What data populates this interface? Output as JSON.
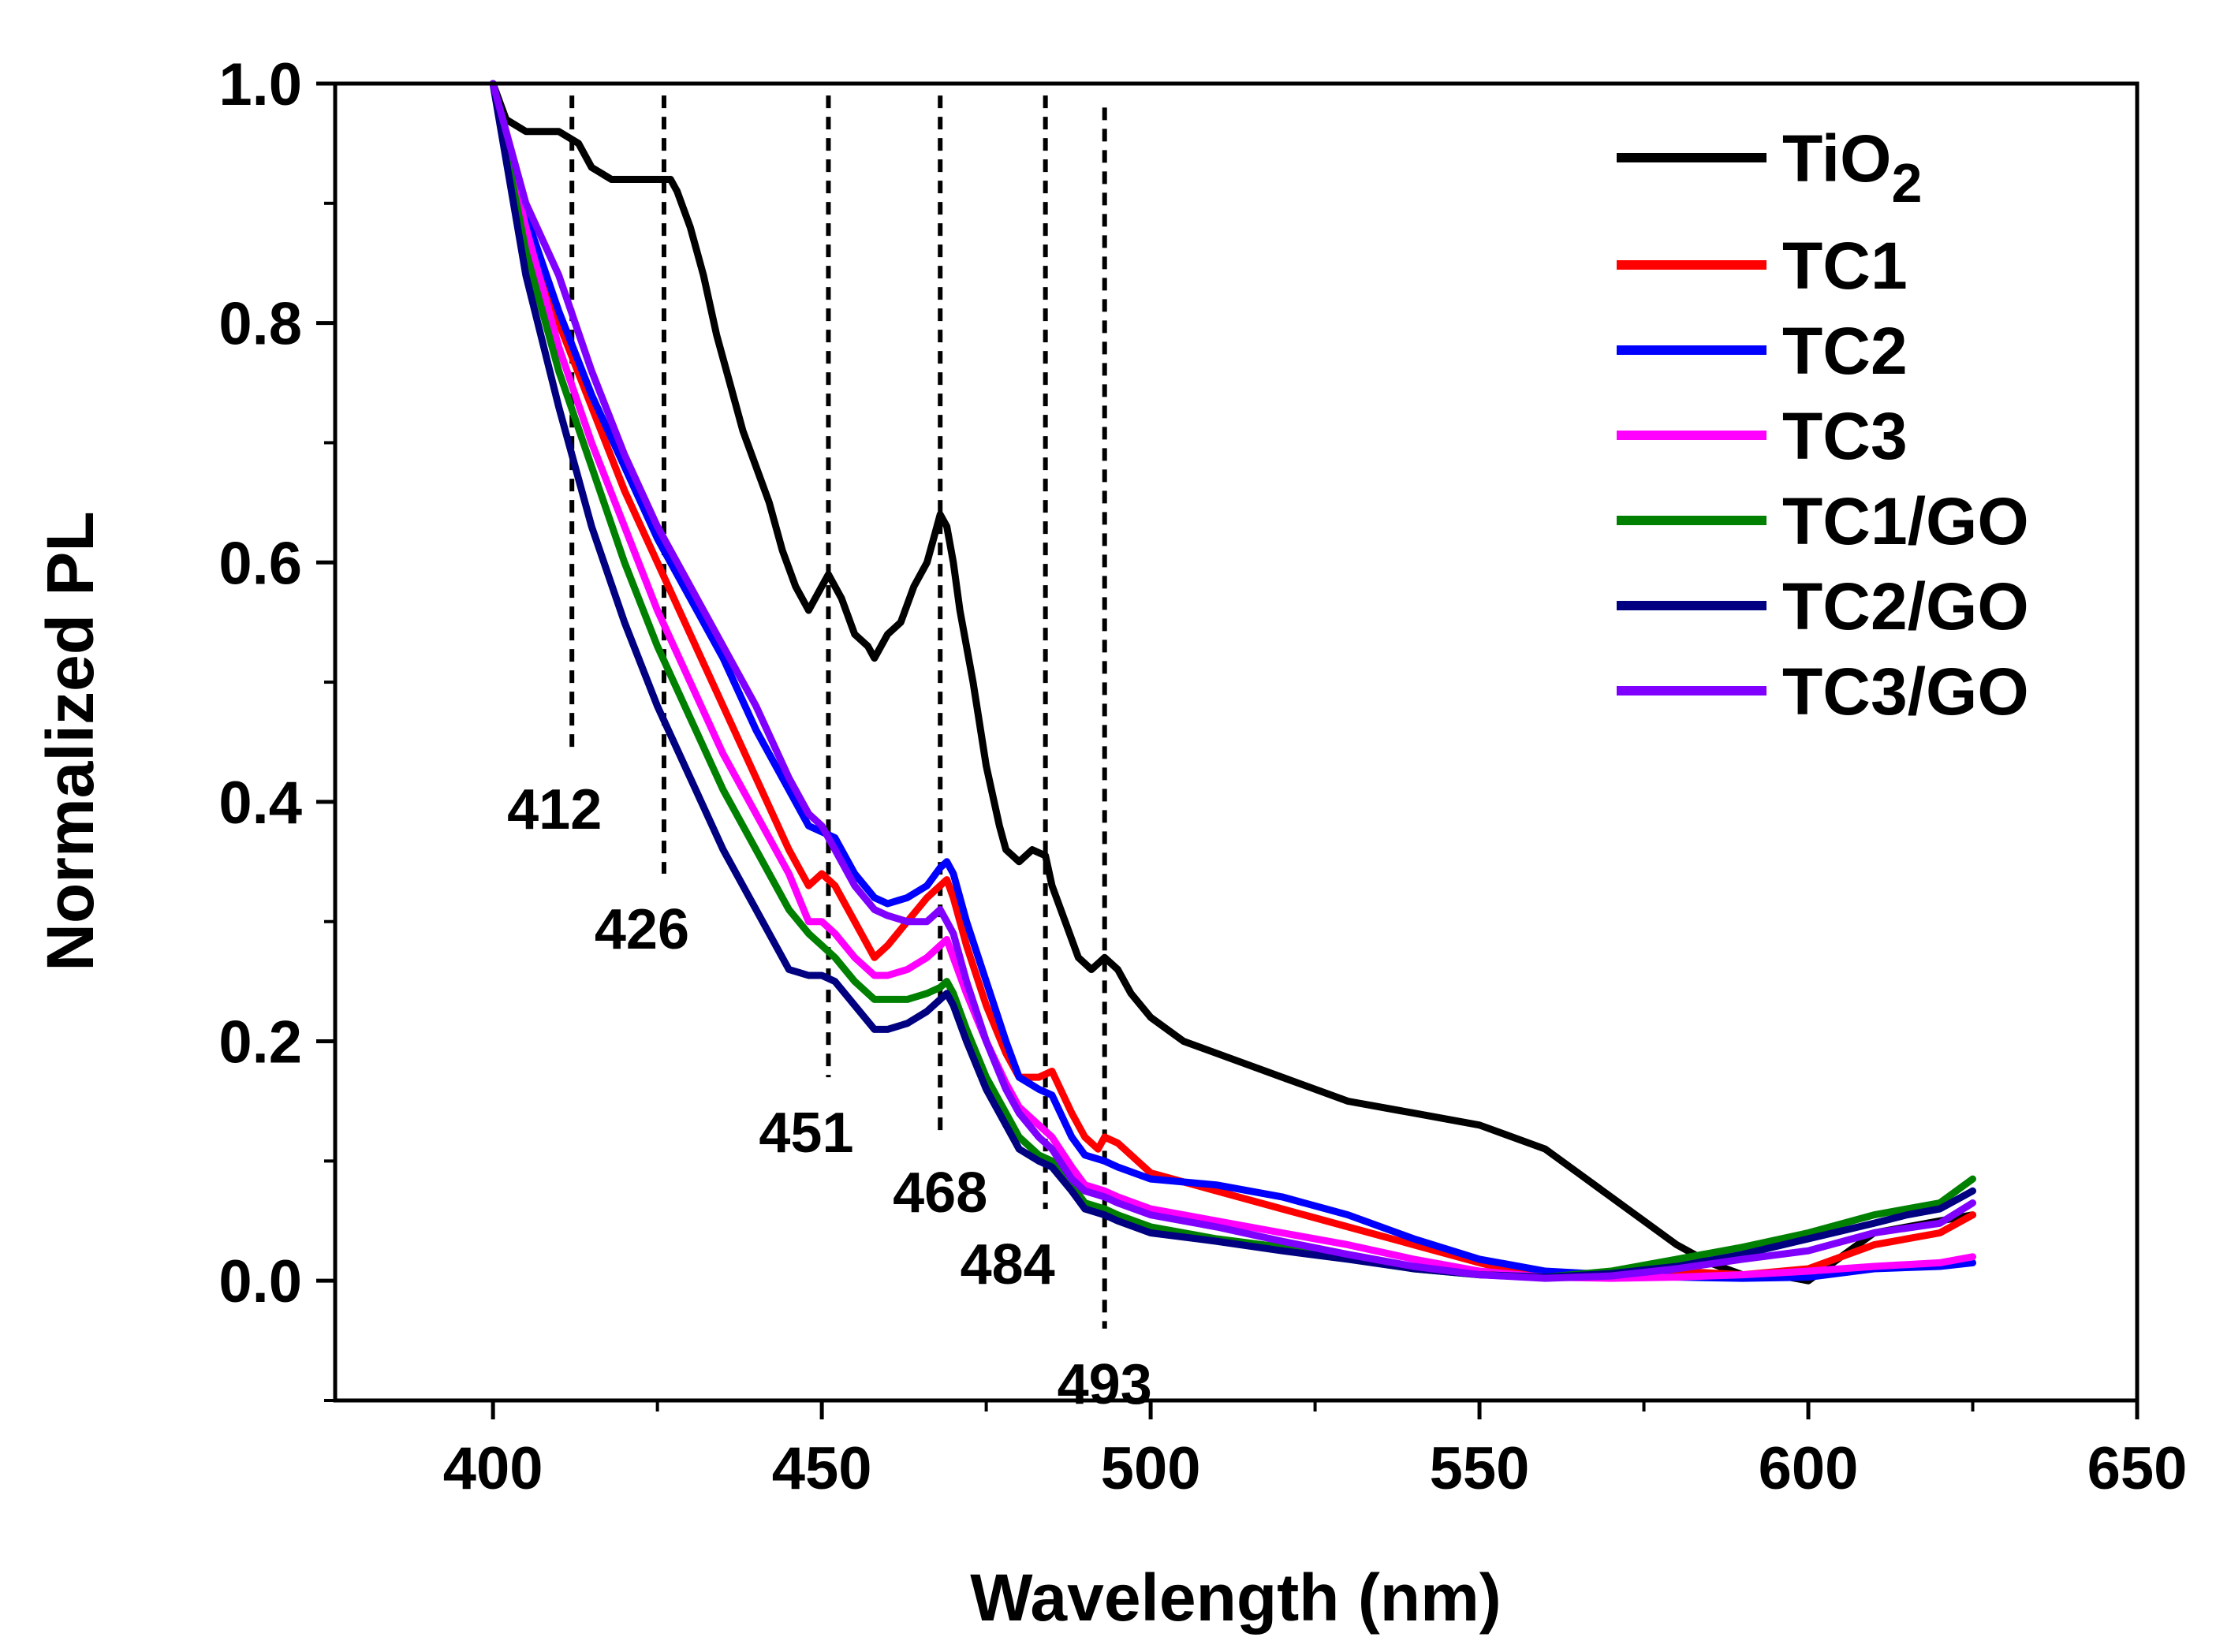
{
  "chart_data": {
    "type": "line",
    "xlabel": "Wavelength (nm)",
    "ylabel": "Normalized PL",
    "xlim": [
      376,
      650
    ],
    "ylim": [
      -0.1,
      1.0
    ],
    "xticks": [
      "400",
      "450",
      "500",
      "550",
      "600",
      "650"
    ],
    "xtick_values": [
      400,
      450,
      500,
      550,
      600,
      650
    ],
    "yticks": [
      "0.0",
      "0.2",
      "0.4",
      "0.6",
      "0.8",
      "1.0"
    ],
    "ytick_values": [
      0.0,
      0.2,
      0.4,
      0.6,
      0.8,
      1.0
    ],
    "peak_markers": [
      {
        "wavelength": 412,
        "label": "412",
        "ymin": 0.44,
        "ymax": 0.99
      },
      {
        "wavelength": 426,
        "label": "426",
        "ymin": 0.34,
        "ymax": 0.99
      },
      {
        "wavelength": 451,
        "label": "451",
        "ymin": 0.17,
        "ymax": 0.99
      },
      {
        "wavelength": 468,
        "label": "468",
        "ymin": 0.12,
        "ymax": 0.99
      },
      {
        "wavelength": 484,
        "label": "484",
        "ymin": 0.06,
        "ymax": 0.99
      },
      {
        "wavelength": 493,
        "label": "493",
        "ymin": -0.04,
        "ymax": 0.98
      }
    ],
    "series": [
      {
        "name": "TiO",
        "subscript": "2",
        "color": "#000000",
        "x": [
          400,
          402,
          405,
          410,
          413,
          415,
          418,
          420,
          422,
          425,
          427,
          428,
          430,
          432,
          434,
          436,
          438,
          440,
          442,
          444,
          446,
          448,
          450,
          451,
          453,
          455,
          457,
          458,
          460,
          462,
          464,
          466,
          467,
          468,
          469,
          470,
          471,
          473,
          475,
          477,
          478,
          479,
          480,
          482,
          484,
          485,
          487,
          489,
          491,
          492,
          493,
          495,
          497,
          500,
          505,
          510,
          520,
          530,
          540,
          550,
          560,
          565,
          570,
          575,
          580,
          585,
          590,
          595,
          600,
          605,
          610,
          615,
          620,
          625
        ],
        "y": [
          1.0,
          0.97,
          0.96,
          0.96,
          0.95,
          0.93,
          0.92,
          0.92,
          0.92,
          0.92,
          0.92,
          0.91,
          0.88,
          0.84,
          0.79,
          0.75,
          0.71,
          0.68,
          0.65,
          0.61,
          0.58,
          0.56,
          0.58,
          0.59,
          0.57,
          0.54,
          0.53,
          0.52,
          0.54,
          0.55,
          0.58,
          0.6,
          0.62,
          0.64,
          0.63,
          0.6,
          0.56,
          0.5,
          0.43,
          0.38,
          0.36,
          0.355,
          0.35,
          0.36,
          0.355,
          0.33,
          0.3,
          0.27,
          0.26,
          0.265,
          0.27,
          0.26,
          0.24,
          0.22,
          0.2,
          0.19,
          0.17,
          0.15,
          0.14,
          0.13,
          0.11,
          0.09,
          0.07,
          0.05,
          0.03,
          0.015,
          0.005,
          0.005,
          0.0,
          0.02,
          0.04,
          0.045,
          0.05,
          0.055
        ]
      },
      {
        "name": "TC1",
        "color": "#ff0000",
        "x": [
          400,
          405,
          410,
          415,
          420,
          425,
          430,
          435,
          440,
          445,
          448,
          450,
          452,
          455,
          458,
          460,
          463,
          466,
          468,
          469,
          470,
          472,
          475,
          478,
          480,
          483,
          485,
          488,
          490,
          492,
          493,
          495,
          500,
          510,
          520,
          530,
          540,
          550,
          555,
          560,
          570,
          580,
          590,
          600,
          610,
          620,
          625
        ],
        "y": [
          1.0,
          0.88,
          0.8,
          0.73,
          0.66,
          0.6,
          0.54,
          0.48,
          0.42,
          0.36,
          0.33,
          0.34,
          0.33,
          0.3,
          0.27,
          0.28,
          0.3,
          0.32,
          0.33,
          0.335,
          0.32,
          0.28,
          0.23,
          0.19,
          0.17,
          0.17,
          0.175,
          0.14,
          0.12,
          0.11,
          0.12,
          0.115,
          0.09,
          0.075,
          0.06,
          0.045,
          0.03,
          0.015,
          0.008,
          0.005,
          0.005,
          0.008,
          0.005,
          0.01,
          0.03,
          0.04,
          0.055
        ]
      },
      {
        "name": "TC2",
        "color": "#0000ff",
        "x": [
          400,
          405,
          410,
          415,
          420,
          425,
          430,
          435,
          440,
          445,
          448,
          450,
          452,
          455,
          458,
          460,
          463,
          466,
          468,
          469,
          470,
          472,
          475,
          478,
          480,
          483,
          485,
          488,
          490,
          493,
          495,
          500,
          510,
          520,
          530,
          540,
          550,
          560,
          570,
          580,
          590,
          600,
          610,
          620,
          625
        ],
        "y": [
          1.0,
          0.89,
          0.81,
          0.74,
          0.68,
          0.62,
          0.57,
          0.52,
          0.46,
          0.41,
          0.38,
          0.375,
          0.37,
          0.34,
          0.32,
          0.315,
          0.32,
          0.33,
          0.345,
          0.35,
          0.34,
          0.3,
          0.25,
          0.2,
          0.17,
          0.16,
          0.155,
          0.12,
          0.105,
          0.1,
          0.095,
          0.085,
          0.08,
          0.07,
          0.055,
          0.035,
          0.018,
          0.008,
          0.005,
          0.003,
          0.002,
          0.003,
          0.01,
          0.012,
          0.015
        ]
      },
      {
        "name": "TC3",
        "color": "#ff00ff",
        "x": [
          400,
          405,
          410,
          415,
          420,
          425,
          430,
          435,
          440,
          445,
          448,
          450,
          452,
          455,
          458,
          460,
          463,
          466,
          468,
          469,
          470,
          472,
          475,
          478,
          480,
          483,
          485,
          488,
          490,
          493,
          495,
          500,
          510,
          520,
          530,
          540,
          550,
          560,
          570,
          580,
          590,
          600,
          610,
          620,
          625
        ],
        "y": [
          1.0,
          0.88,
          0.78,
          0.7,
          0.63,
          0.56,
          0.5,
          0.44,
          0.39,
          0.34,
          0.3,
          0.3,
          0.29,
          0.27,
          0.255,
          0.255,
          0.26,
          0.27,
          0.28,
          0.285,
          0.27,
          0.24,
          0.2,
          0.165,
          0.145,
          0.13,
          0.12,
          0.095,
          0.08,
          0.075,
          0.07,
          0.06,
          0.05,
          0.04,
          0.03,
          0.018,
          0.008,
          0.003,
          0.002,
          0.003,
          0.005,
          0.008,
          0.012,
          0.015,
          0.02
        ]
      },
      {
        "name": "TC1/GO",
        "color": "#008000",
        "x": [
          400,
          405,
          410,
          415,
          420,
          425,
          430,
          435,
          440,
          445,
          448,
          450,
          452,
          455,
          458,
          460,
          463,
          466,
          468,
          469,
          470,
          472,
          475,
          478,
          480,
          483,
          485,
          488,
          490,
          493,
          495,
          500,
          510,
          520,
          530,
          540,
          550,
          560,
          570,
          580,
          590,
          600,
          610,
          615,
          620,
          625
        ],
        "y": [
          1.0,
          0.86,
          0.76,
          0.68,
          0.6,
          0.53,
          0.47,
          0.41,
          0.36,
          0.31,
          0.29,
          0.28,
          0.27,
          0.25,
          0.235,
          0.235,
          0.235,
          0.24,
          0.245,
          0.25,
          0.24,
          0.21,
          0.17,
          0.14,
          0.12,
          0.105,
          0.1,
          0.08,
          0.065,
          0.06,
          0.055,
          0.045,
          0.035,
          0.028,
          0.02,
          0.01,
          0.005,
          0.003,
          0.008,
          0.018,
          0.028,
          0.04,
          0.055,
          0.06,
          0.065,
          0.085
        ]
      },
      {
        "name": "TC2/GO",
        "color": "#000080",
        "x": [
          400,
          405,
          410,
          415,
          420,
          425,
          430,
          435,
          440,
          445,
          448,
          450,
          452,
          455,
          458,
          460,
          463,
          466,
          468,
          469,
          470,
          472,
          475,
          478,
          480,
          483,
          485,
          488,
          490,
          493,
          495,
          500,
          510,
          520,
          530,
          540,
          550,
          560,
          570,
          580,
          590,
          600,
          610,
          615,
          620,
          625
        ],
        "y": [
          1.0,
          0.84,
          0.73,
          0.63,
          0.55,
          0.48,
          0.42,
          0.36,
          0.31,
          0.26,
          0.255,
          0.255,
          0.25,
          0.23,
          0.21,
          0.21,
          0.215,
          0.225,
          0.235,
          0.24,
          0.23,
          0.2,
          0.16,
          0.13,
          0.11,
          0.1,
          0.095,
          0.075,
          0.06,
          0.055,
          0.05,
          0.04,
          0.033,
          0.025,
          0.018,
          0.01,
          0.005,
          0.003,
          0.006,
          0.012,
          0.022,
          0.035,
          0.048,
          0.055,
          0.06,
          0.075
        ]
      },
      {
        "name": "TC3/GO",
        "color": "#8000ff",
        "x": [
          400,
          405,
          410,
          415,
          420,
          425,
          430,
          435,
          440,
          445,
          448,
          450,
          452,
          455,
          458,
          460,
          463,
          466,
          468,
          469,
          470,
          472,
          475,
          478,
          480,
          483,
          485,
          488,
          490,
          493,
          495,
          500,
          510,
          520,
          530,
          540,
          550,
          560,
          570,
          580,
          590,
          600,
          610,
          620,
          625
        ],
        "y": [
          1.0,
          0.9,
          0.84,
          0.76,
          0.69,
          0.63,
          0.58,
          0.53,
          0.48,
          0.42,
          0.39,
          0.38,
          0.36,
          0.33,
          0.31,
          0.305,
          0.3,
          0.3,
          0.31,
          0.3,
          0.29,
          0.25,
          0.2,
          0.16,
          0.14,
          0.12,
          0.11,
          0.085,
          0.075,
          0.07,
          0.065,
          0.055,
          0.045,
          0.033,
          0.022,
          0.012,
          0.005,
          0.002,
          0.004,
          0.01,
          0.018,
          0.025,
          0.04,
          0.048,
          0.065
        ]
      }
    ]
  }
}
